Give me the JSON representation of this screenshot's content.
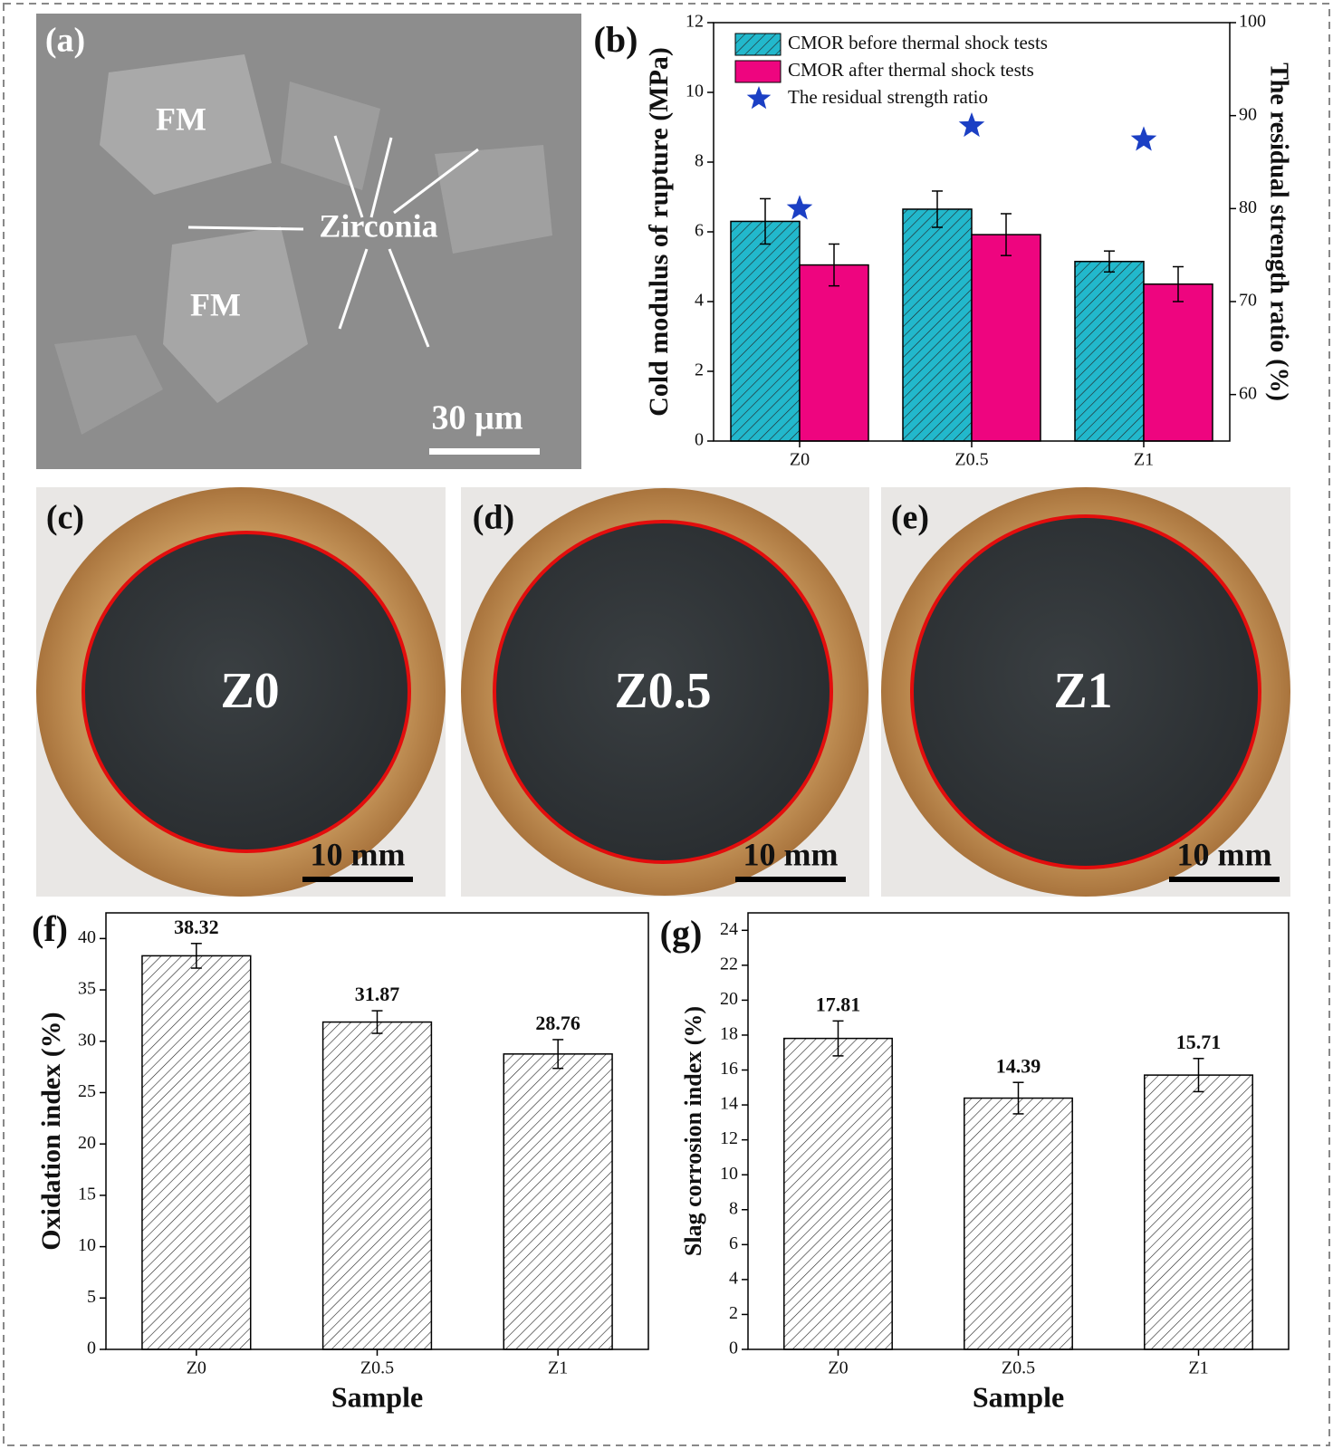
{
  "images": [
    {
      "label": "(a)",
      "annotations": [
        "FM",
        "FM",
        "Zirconia"
      ],
      "scale_bar": "30 µm"
    },
    {
      "label": "(c)",
      "sample": "Z0",
      "scale_bar": "10 mm"
    },
    {
      "label": "(d)",
      "sample": "Z0.5",
      "scale_bar": "10 mm"
    },
    {
      "label": "(e)",
      "sample": "Z1",
      "scale_bar": "10 mm"
    }
  ],
  "chart_data": [
    {
      "type": "bar",
      "panel": "(b)",
      "categories": [
        "Z0",
        "Z0.5",
        "Z1"
      ],
      "ylabel": "Cold modulus of rupture (MPa)",
      "y2label": "The residual strength ratio (%)",
      "ylim": [
        0,
        12
      ],
      "yticks": [
        0,
        2,
        4,
        6,
        8,
        10,
        12
      ],
      "y2lim": [
        55,
        100
      ],
      "y2ticks": [
        60,
        70,
        80,
        90,
        100
      ],
      "series": [
        {
          "name": "CMOR before thermal shock tests",
          "color": "#22b8cc",
          "hatch": true,
          "values": [
            6.3,
            6.65,
            5.15
          ],
          "errors": [
            0.65,
            0.52,
            0.3
          ]
        },
        {
          "name": "CMOR after thermal shock tests",
          "color": "#ee057f",
          "values": [
            5.05,
            5.92,
            4.5
          ],
          "errors": [
            0.6,
            0.6,
            0.5
          ]
        },
        {
          "name": "The residual strength ratio",
          "color": "#1b3fc4",
          "marker": "star",
          "axis": "y2",
          "values": [
            80.0,
            88.9,
            87.4
          ]
        }
      ]
    },
    {
      "type": "bar",
      "panel": "(f)",
      "categories": [
        "Z0",
        "Z0.5",
        "Z1"
      ],
      "xlabel": "Sample",
      "ylabel": "Oxidation index (%)",
      "ylim": [
        0,
        42.5
      ],
      "yticks": [
        0,
        5,
        10,
        15,
        20,
        25,
        30,
        35,
        40
      ],
      "color": "#ffffff",
      "hatch": true,
      "values": [
        38.32,
        31.87,
        28.76
      ],
      "errors": [
        1.2,
        1.1,
        1.4
      ]
    },
    {
      "type": "bar",
      "panel": "(g)",
      "categories": [
        "Z0",
        "Z0.5",
        "Z1"
      ],
      "xlabel": "Sample",
      "ylabel": "Slag corrosion index (%)",
      "ylim": [
        0,
        25
      ],
      "yticks": [
        0,
        2,
        4,
        6,
        8,
        10,
        12,
        14,
        16,
        18,
        20,
        22,
        24
      ],
      "color": "#ffffff",
      "hatch": true,
      "values": [
        17.81,
        14.39,
        15.71
      ],
      "errors": [
        1.0,
        0.9,
        0.95
      ]
    }
  ]
}
